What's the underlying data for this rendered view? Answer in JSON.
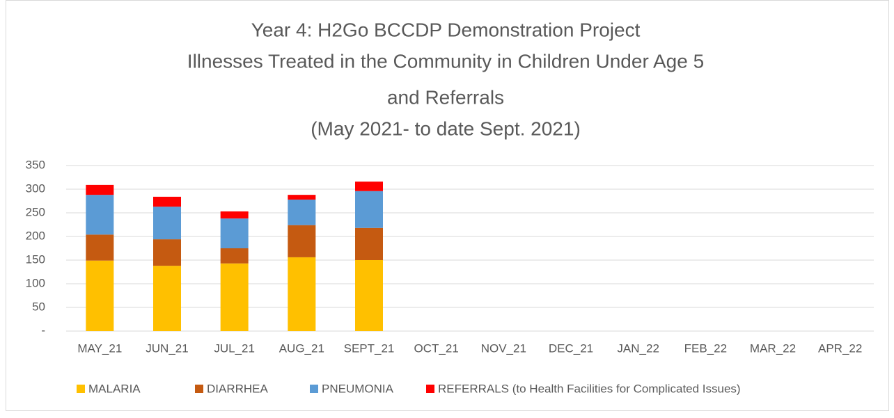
{
  "chart_data": {
    "type": "stacked_bar",
    "title": [
      "Year 4: H2Go BCCDP Demonstration Project",
      "Illnesses Treated in the Community in Children Under Age 5",
      "and Referrals",
      "(May 2021- to date Sept. 2021)"
    ],
    "categories": [
      "MAY_21",
      "JUN_21",
      "JUL_21",
      "AUG_21",
      "SEPT_21",
      "OCT_21",
      "NOV_21",
      "DEC_21",
      "JAN_22",
      "FEB_22",
      "MAR_22",
      "APR_22"
    ],
    "series": [
      {
        "name": "MALARIA",
        "color": "#ffc000",
        "values": [
          149,
          138,
          143,
          156,
          150,
          null,
          null,
          null,
          null,
          null,
          null,
          null
        ]
      },
      {
        "name": "DIARRHEA",
        "color": "#c55a11",
        "values": [
          55,
          56,
          32,
          68,
          68,
          null,
          null,
          null,
          null,
          null,
          null,
          null
        ]
      },
      {
        "name": "PNEUMONIA",
        "color": "#5b9bd5",
        "values": [
          84,
          69,
          63,
          54,
          78,
          null,
          null,
          null,
          null,
          null,
          null,
          null
        ]
      },
      {
        "name": "REFERRALS (to Health Facilities for Complicated Issues)",
        "color": "#ff0000",
        "values": [
          21,
          21,
          15,
          10,
          20,
          null,
          null,
          null,
          null,
          null,
          null,
          null
        ]
      }
    ],
    "ylim": [
      0,
      350
    ],
    "yticks": [
      {
        "value": 0,
        "label": "-"
      },
      50,
      100,
      150,
      200,
      250,
      300,
      350
    ],
    "grid": true,
    "legend": "bottom"
  }
}
